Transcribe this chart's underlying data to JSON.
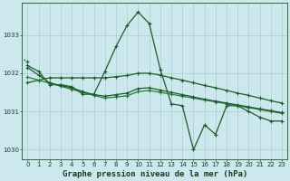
{
  "title": "Graphe pression niveau de la mer (hPa)",
  "bg_color": "#cce8ee",
  "grid_color": "#aacccc",
  "line_color1": "#1a5c28",
  "line_color2": "#2a7a3a",
  "x_hours": [
    0,
    1,
    2,
    3,
    4,
    5,
    6,
    7,
    8,
    9,
    10,
    11,
    12,
    13,
    14,
    15,
    16,
    17,
    18,
    19,
    20,
    21,
    22,
    23
  ],
  "series_main": [
    1032.2,
    1032.05,
    1031.7,
    1031.7,
    1031.65,
    1031.45,
    1031.45,
    1032.05,
    1032.7,
    1033.25,
    1033.6,
    1033.3,
    1032.1,
    1031.2,
    1031.15,
    1030.0,
    1030.65,
    1030.4,
    1031.15,
    1031.15,
    1031.0,
    1030.85,
    1030.75,
    1030.75
  ],
  "series_dotted": [
    1032.3,
    null,
    null,
    null,
    null,
    null,
    null,
    null,
    null,
    null,
    null,
    null,
    null,
    null,
    null,
    null,
    null,
    null,
    null,
    null,
    null,
    null,
    null,
    null
  ],
  "series_b": [
    1031.9,
    1031.82,
    1031.74,
    1031.66,
    1031.58,
    1031.5,
    1031.42,
    1031.35,
    1031.38,
    1031.41,
    1031.52,
    1031.55,
    1031.5,
    1031.45,
    1031.4,
    1031.35,
    1031.3,
    1031.25,
    1031.2,
    1031.15,
    1031.1,
    1031.05,
    1031.0,
    1030.95
  ],
  "series_c": [
    1032.15,
    1031.95,
    1031.75,
    1031.68,
    1031.62,
    1031.52,
    1031.44,
    1031.4,
    1031.44,
    1031.48,
    1031.6,
    1031.62,
    1031.56,
    1031.5,
    1031.44,
    1031.38,
    1031.32,
    1031.27,
    1031.22,
    1031.17,
    1031.12,
    1031.07,
    1031.02,
    1030.97
  ],
  "series_slow": [
    1031.75,
    1031.82,
    1031.88,
    1031.88,
    1031.88,
    1031.88,
    1031.88,
    1031.88,
    1031.91,
    1031.94,
    1032.0,
    1032.0,
    1031.95,
    1031.88,
    1031.82,
    1031.75,
    1031.68,
    1031.62,
    1031.55,
    1031.48,
    1031.42,
    1031.35,
    1031.28,
    1031.22
  ],
  "ylim": [
    1029.75,
    1033.85
  ],
  "yticks": [
    1030,
    1031,
    1032,
    1033
  ],
  "title_fontsize": 6.5,
  "tick_fontsize": 5.0
}
